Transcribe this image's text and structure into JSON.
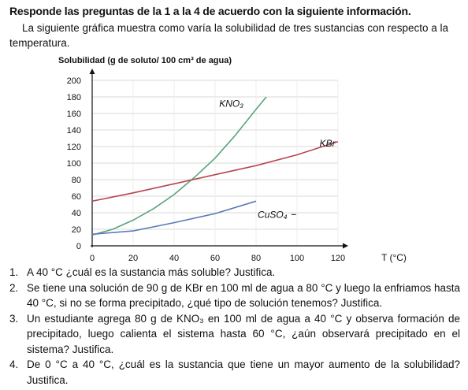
{
  "heading": "Responde las preguntas de la 1 a la 4 de acuerdo con la siguiente información.",
  "intro": "La siguiente gráfica muestra como varía la solubilidad de tres sustancias con respecto a la temperatura.",
  "chart_data": {
    "type": "line",
    "title": "Solubilidad (g de soluto/ 100 cm³ de agua)",
    "xlabel": "T (°C)",
    "ylabel": "",
    "xlim": [
      0,
      120
    ],
    "ylim": [
      0,
      200
    ],
    "x_ticks": [
      "0",
      "20",
      "40",
      "60",
      "80",
      "100",
      "120"
    ],
    "y_ticks": [
      "0",
      "20",
      "40",
      "60",
      "80",
      "100",
      "120",
      "140",
      "160",
      "180",
      "200"
    ],
    "grid": true,
    "series": [
      {
        "name": "KNO₃",
        "color": "#5aa37c",
        "x": [
          0,
          10,
          20,
          30,
          40,
          50,
          60,
          70,
          80,
          85
        ],
        "y": [
          13,
          20,
          31,
          45,
          62,
          83,
          106,
          134,
          165,
          180
        ]
      },
      {
        "name": "KBr",
        "color": "#b5474f",
        "x": [
          0,
          20,
          40,
          60,
          80,
          100,
          120
        ],
        "y": [
          54,
          64,
          75,
          86,
          97,
          110,
          126
        ]
      },
      {
        "name": "CuSO₄",
        "color": "#5a78b8",
        "x": [
          0,
          20,
          40,
          60,
          80
        ],
        "y": [
          14,
          18,
          28,
          39,
          54
        ]
      }
    ]
  },
  "questions": [
    {
      "num": "1.",
      "text": "A 40 °C ¿cuál es la sustancia más soluble? Justifica."
    },
    {
      "num": "2.",
      "text": "Se tiene una solución de 90 g de KBr en 100 ml de agua a 80 °C y luego la enfriamos hasta 40 °C, si no se forma precipitado, ¿qué tipo de solución tenemos? Justifica."
    },
    {
      "num": "3.",
      "text": "Un estudiante agrega 80 g de KNO₃ en 100 ml de agua a 40 °C y observa formación de precipitado, luego calienta el sistema hasta 60 °C, ¿aún observará precipitado en el sistema? Justifica."
    },
    {
      "num": "4.",
      "text": "De 0 °C a 40 °C, ¿cuál es la sustancia que tiene un mayor aumento de la solubilidad? Justifica."
    }
  ]
}
